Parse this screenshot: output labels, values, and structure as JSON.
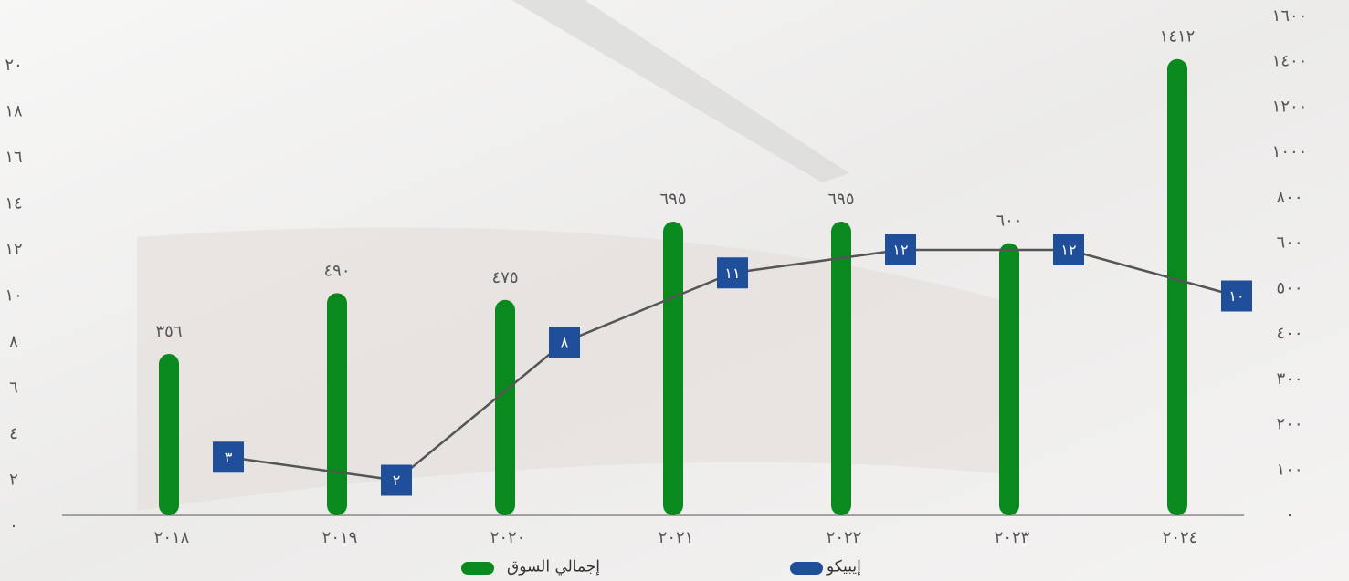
{
  "chart_data": {
    "type": "bar-line",
    "categories": [
      "٢٠١٨",
      "٢٠١٩",
      "٢٠٢٠",
      "٢٠٢١",
      "٢٠٢٢",
      "٢٠٢٣",
      "٢٠٢٤"
    ],
    "series": [
      {
        "name": "إجمالي السوق",
        "type": "bar",
        "axis": "y2",
        "color": "#0a8a1e",
        "values": [
          356,
          490,
          475,
          695,
          695,
          600,
          1412
        ],
        "value_labels": [
          "٣٥٦",
          "٤٩٠",
          "٤٧٥",
          "٦٩٥",
          "٦٩٥",
          "٦٠٠",
          "١٤١٢"
        ]
      },
      {
        "name": "إيبيكو",
        "type": "line",
        "color": "#1f4e9a",
        "values": [
          3,
          2,
          8,
          11,
          12,
          12,
          10
        ],
        "value_labels": [
          "٣",
          "٢",
          "٨",
          "١١",
          "١٢",
          "١٢",
          "١٠"
        ]
      }
    ],
    "ylim": [
      0,
      20
    ],
    "yticks": [
      {
        "value": 0,
        "label": "٠"
      },
      {
        "value": 2,
        "label": "٢"
      },
      {
        "value": 4,
        "label": "٤"
      },
      {
        "value": 6,
        "label": "٦"
      },
      {
        "value": 8,
        "label": "٨"
      },
      {
        "value": 10,
        "label": "١٠"
      },
      {
        "value": 12,
        "label": "١٢"
      },
      {
        "value": 14,
        "label": "١٤"
      },
      {
        "value": 16,
        "label": "١٦"
      },
      {
        "value": 18,
        "label": "١٨"
      },
      {
        "value": 20,
        "label": "٢٠"
      }
    ],
    "y2lim": [
      0,
      1600
    ],
    "y2ticks": [
      {
        "value": 0,
        "label": "٠"
      },
      {
        "value": 100,
        "label": "١٠٠"
      },
      {
        "value": 200,
        "label": "٢٠٠"
      },
      {
        "value": 300,
        "label": "٣٠٠"
      },
      {
        "value": 400,
        "label": "٤٠٠"
      },
      {
        "value": 500,
        "label": "٥٠٠"
      },
      {
        "value": 600,
        "label": "٦٠٠"
      },
      {
        "value": 800,
        "label": "٨٠٠"
      },
      {
        "value": 1000,
        "label": "١٠٠٠"
      },
      {
        "value": 1200,
        "label": "١٢٠٠"
      },
      {
        "value": 1400,
        "label": "١٤٠٠"
      },
      {
        "value": 1600,
        "label": "١٦٠٠"
      }
    ],
    "grid": false
  }
}
